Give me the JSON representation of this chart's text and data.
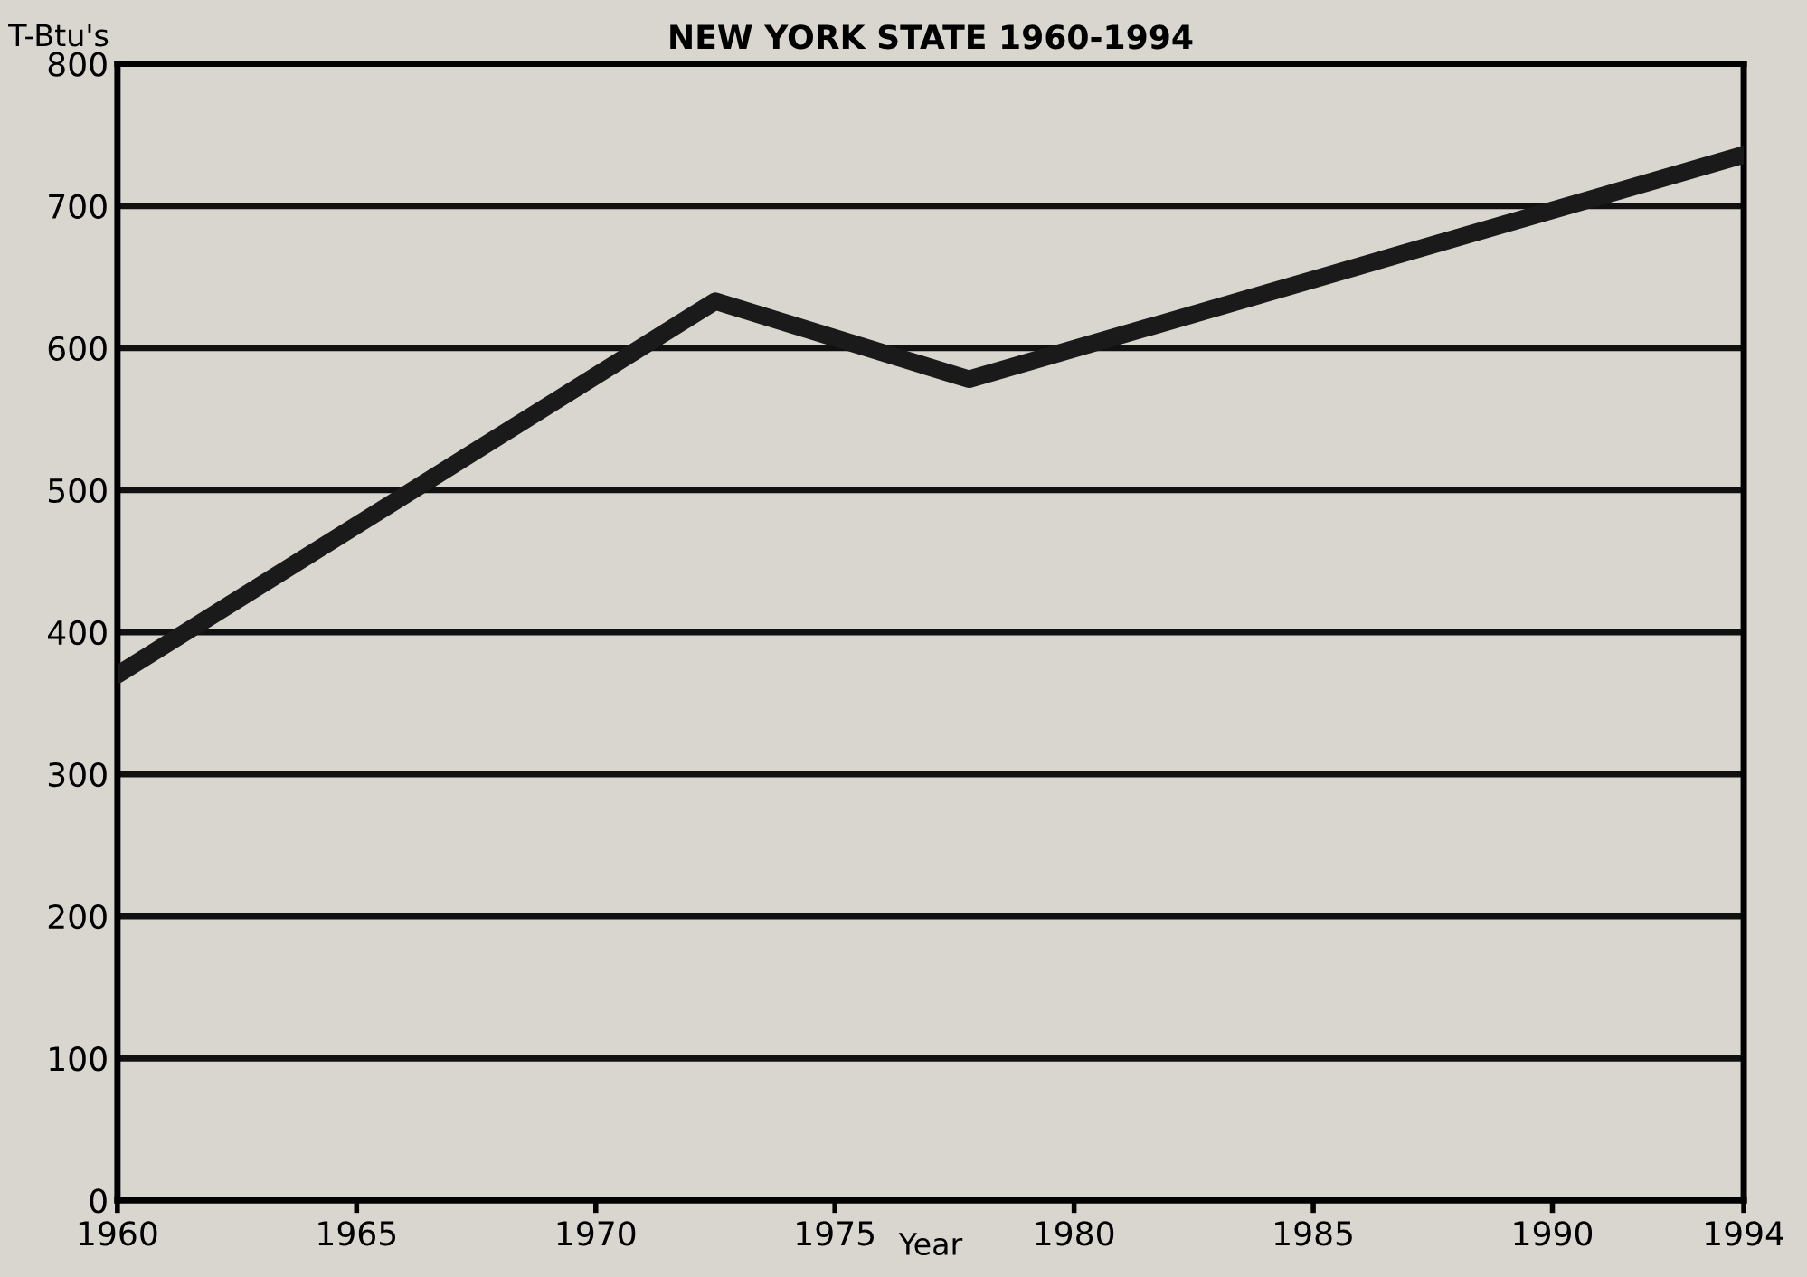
{
  "chart_data": {
    "type": "line",
    "title": "NEW YORK STATE 1960-1994",
    "xlabel": "Year",
    "ylabel": "T-Btu's",
    "x": [
      1960,
      1972.5,
      1977.8,
      1994
    ],
    "series": [
      {
        "color": "#1a1a1a",
        "values": [
          370,
          633,
          578,
          736
        ]
      }
    ],
    "xlim": [
      1960,
      1994
    ],
    "xticks": [
      1960,
      1965,
      1970,
      1975,
      1980,
      1985,
      1990,
      1994
    ],
    "ylim": [
      0,
      800
    ],
    "yticks": [
      0,
      100,
      200,
      300,
      400,
      500,
      600,
      700,
      800
    ],
    "grid": "y",
    "marker": "none",
    "line_style": "solid"
  }
}
